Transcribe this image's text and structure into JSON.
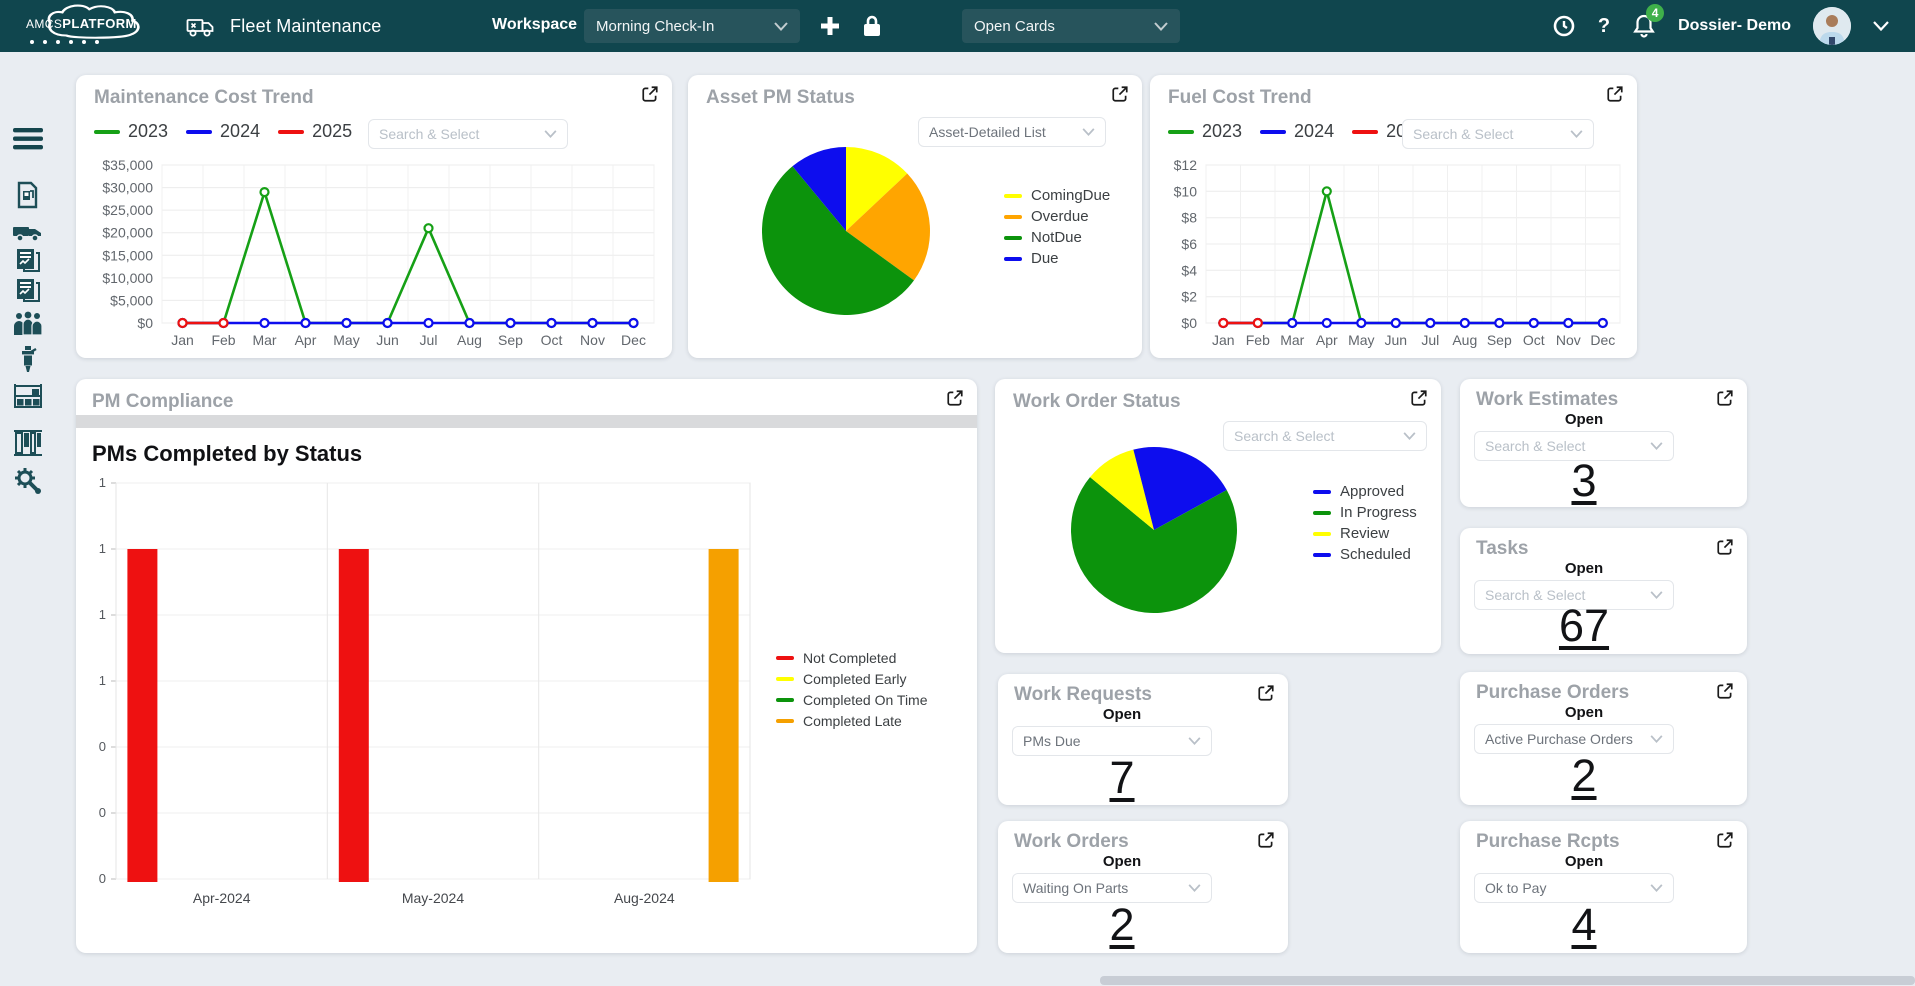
{
  "navbar": {
    "brand_amcs": "AMCS",
    "brand_platform": "PLATFORM",
    "app_title": "Fleet Maintenance",
    "workspace_label": "Workspace",
    "workspace_value": "Morning Check-In",
    "cards_filter_value": "Open Cards",
    "notification_count": "4",
    "user_name": "Dossier- Demo"
  },
  "sidebar": {
    "items": [
      {
        "name": "menu"
      },
      {
        "name": "fuel-usage"
      },
      {
        "name": "vehicles"
      },
      {
        "name": "work-order-reports"
      },
      {
        "name": "repair-reports"
      },
      {
        "name": "personnel"
      },
      {
        "name": "parts"
      },
      {
        "name": "inventory-rack"
      },
      {
        "name": "warehouse-shelves"
      },
      {
        "name": "service-settings"
      }
    ]
  },
  "cards": {
    "pm_compliance": {
      "title": "PM Compliance"
    },
    "maintenance": {
      "select_placeholder": "Search & Select"
    },
    "asset": {
      "select_value": "Asset-Detailed List"
    },
    "fuel": {
      "select_placeholder": "Search & Select"
    },
    "work_order_status": {
      "select_placeholder": "Search & Select"
    }
  },
  "chart_data": [
    {
      "id": "maintenance-cost-trend",
      "type": "line",
      "title": "Maintenance Cost Trend",
      "x": [
        "Jan",
        "Feb",
        "Mar",
        "Apr",
        "May",
        "Jun",
        "Jul",
        "Aug",
        "Sep",
        "Oct",
        "Nov",
        "Dec"
      ],
      "series": [
        {
          "name": "2023",
          "color": "#16a016",
          "values": [
            0,
            0,
            29000,
            0,
            0,
            0,
            21000,
            0,
            0,
            0,
            0,
            0
          ]
        },
        {
          "name": "2024",
          "color": "#0d0dee",
          "values": [
            0,
            0,
            0,
            0,
            0,
            0,
            0,
            0,
            0,
            0,
            0,
            0
          ]
        },
        {
          "name": "2025",
          "color": "#ee1111",
          "values": [
            0,
            0,
            null,
            null,
            null,
            null,
            null,
            null,
            null,
            null,
            null,
            null
          ]
        }
      ],
      "ylim": [
        0,
        35000
      ],
      "ytick_labels": [
        "$35,000",
        "$30,000",
        "$25,000",
        "$20,000",
        "$15,000",
        "$10,000",
        "$5,000",
        "$0"
      ],
      "grid": true,
      "legend_position": "top"
    },
    {
      "id": "asset-pm-status",
      "type": "pie",
      "title": "Asset PM Status",
      "slices": [
        {
          "label": "ComingDue",
          "color": "#ffff00",
          "pct": 13
        },
        {
          "label": "Overdue",
          "color": "#ffa500",
          "pct": 22
        },
        {
          "label": "NotDue",
          "color": "#0c930c",
          "pct": 54
        },
        {
          "label": "Due",
          "color": "#0d0dee",
          "pct": 11
        }
      ],
      "legend_position": "right"
    },
    {
      "id": "fuel-cost-trend",
      "type": "line",
      "title": "Fuel Cost Trend",
      "x": [
        "Jan",
        "Feb",
        "Mar",
        "Apr",
        "May",
        "Jun",
        "Jul",
        "Aug",
        "Sep",
        "Oct",
        "Nov",
        "Dec"
      ],
      "series": [
        {
          "name": "2023",
          "color": "#16a016",
          "values": [
            0,
            0,
            0,
            10,
            0,
            0,
            0,
            0,
            0,
            0,
            0,
            0
          ]
        },
        {
          "name": "2024",
          "color": "#0d0dee",
          "values": [
            0,
            0,
            0,
            0,
            0,
            0,
            0,
            0,
            0,
            0,
            0,
            0
          ]
        },
        {
          "name": "2025",
          "color": "#ee1111",
          "values": [
            0,
            0,
            null,
            null,
            null,
            null,
            null,
            null,
            null,
            null,
            null,
            null
          ]
        }
      ],
      "ylim": [
        0,
        12
      ],
      "ytick_labels": [
        "$12",
        "$10",
        "$8",
        "$6",
        "$4",
        "$2",
        "$0"
      ],
      "grid": true,
      "legend_position": "top"
    },
    {
      "id": "pms-completed-by-status",
      "type": "bar",
      "title": "PMs Completed by Status",
      "categories": [
        "Apr-2024",
        "May-2024",
        "Aug-2024"
      ],
      "series": [
        {
          "name": "Not Completed",
          "color": "#ee1111",
          "values": [
            1,
            1,
            0
          ]
        },
        {
          "name": "Completed Early",
          "color": "#ffff00",
          "values": [
            0,
            0,
            0
          ]
        },
        {
          "name": "Completed On Time",
          "color": "#0c930c",
          "values": [
            0,
            0,
            0
          ]
        },
        {
          "name": "Completed Late",
          "color": "#f5a000",
          "values": [
            0,
            0,
            1
          ]
        }
      ],
      "ylim": [
        0,
        1.2
      ],
      "ytick_labels": [
        "1",
        "1",
        "1",
        "1",
        "0",
        "0",
        "0"
      ],
      "grid": true,
      "legend_position": "right"
    },
    {
      "id": "work-order-status",
      "type": "pie",
      "title": "Work Order Status",
      "slices": [
        {
          "label": "Approved",
          "color": "#0d0dee",
          "pct": 17
        },
        {
          "label": "In Progress",
          "color": "#0c930c",
          "pct": 69
        },
        {
          "label": "Review",
          "color": "#ffff00",
          "pct": 10
        },
        {
          "label": "Scheduled",
          "color": "#0d0dee",
          "pct": 4
        }
      ],
      "legend_position": "right"
    }
  ],
  "stat_cards": [
    {
      "title": "Work Estimates",
      "status_label": "Open",
      "select_value": "Search & Select",
      "value": "3"
    },
    {
      "title": "Tasks",
      "status_label": "Open",
      "select_value": "Search & Select",
      "value": "67"
    },
    {
      "title": "Work Requests",
      "status_label": "Open",
      "select_value": "PMs Due",
      "value": "7"
    },
    {
      "title": "Purchase Orders",
      "status_label": "Open",
      "select_value": "Active Purchase Orders",
      "value": "2"
    },
    {
      "title": "Work Orders",
      "status_label": "Open",
      "select_value": "Waiting On Parts",
      "value": "2"
    },
    {
      "title": "Purchase Rcpts",
      "status_label": "Open",
      "select_value": "Ok to Pay",
      "value": "4"
    }
  ],
  "theme": {
    "navbar_bg": "#10464e",
    "navbar_control_bg": "#27545c",
    "badge_green": "#3fb04a",
    "page_bg": "#e9edf2",
    "card_title_gray": "#9da2a8"
  }
}
